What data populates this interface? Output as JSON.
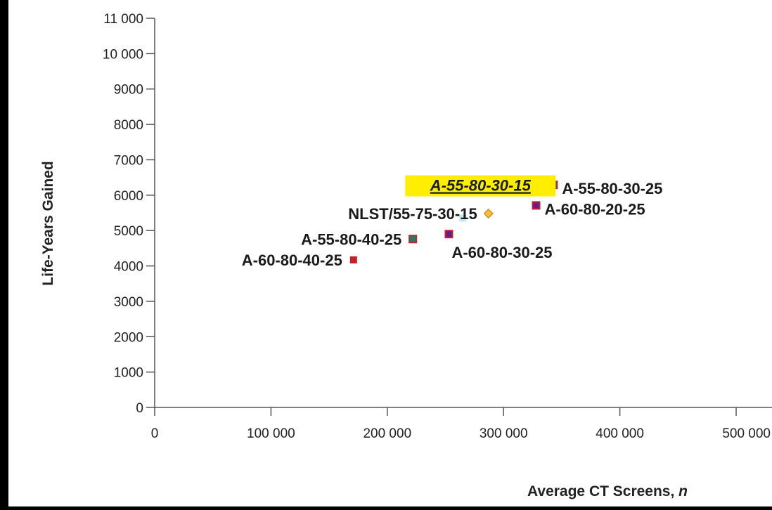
{
  "chart_data": {
    "type": "scatter",
    "xlabel": "Average CT Screens, ",
    "xlabel_italic": "n",
    "ylabel": "Life-Years Gained",
    "xlim": [
      0,
      500000
    ],
    "ylim": [
      0,
      11000
    ],
    "x_ticks": [
      {
        "value": 0,
        "label": "0"
      },
      {
        "value": 100000,
        "label": "100 000"
      },
      {
        "value": 200000,
        "label": "200 000"
      },
      {
        "value": 300000,
        "label": "300 000"
      },
      {
        "value": 400000,
        "label": "400 000"
      },
      {
        "value": 500000,
        "label": "500 000"
      }
    ],
    "y_ticks": [
      {
        "value": 0,
        "label": "0"
      },
      {
        "value": 1000,
        "label": "1000"
      },
      {
        "value": 2000,
        "label": "2000"
      },
      {
        "value": 3000,
        "label": "3000"
      },
      {
        "value": 4000,
        "label": "4000"
      },
      {
        "value": 5000,
        "label": "5000"
      },
      {
        "value": 6000,
        "label": "6000"
      },
      {
        "value": 7000,
        "label": "7000"
      },
      {
        "value": 8000,
        "label": "8000"
      },
      {
        "value": 9000,
        "label": "9000"
      },
      {
        "value": 10000,
        "label": "10 000"
      },
      {
        "value": 11000,
        "label": "11 000"
      }
    ],
    "grid": false,
    "points": [
      {
        "label": "A-60-80-40-25",
        "x": 171000,
        "y": 4170,
        "marker": "square",
        "color": "#c8202a",
        "label_side": "left"
      },
      {
        "label": "A-55-80-40-25",
        "x": 222000,
        "y": 4760,
        "marker": "square",
        "color": "#1f7f6a",
        "border": "#c8202a",
        "label_side": "left"
      },
      {
        "label": "A-60-80-30-25",
        "x": 253000,
        "y": 4900,
        "marker": "square",
        "color": "#6a1a8a",
        "border": "#c8202a",
        "label_side": "below-right"
      },
      {
        "label": "NLST/55-75-30-15",
        "x": 287000,
        "y": 5480,
        "marker": "diamond",
        "color": "#f5c23a",
        "border": "#d98a1a",
        "label_side": "left"
      },
      {
        "label": "A-55-80-30-15",
        "x": 265000,
        "y": 5350,
        "marker": "square",
        "color": "#bfe9f5",
        "highlight": true,
        "label_side": "above"
      },
      {
        "label": "A-60-80-20-25",
        "x": 328000,
        "y": 5710,
        "marker": "square",
        "color": "#6a1a8a",
        "border": "#c8202a",
        "label_side": "right"
      },
      {
        "label": "A-55-80-30-25",
        "x": 343000,
        "y": 6290,
        "marker": "square",
        "color": "#1f7f6a",
        "border": "#c8202a",
        "label_side": "right"
      }
    ],
    "highlight_color": "#ffee00"
  }
}
